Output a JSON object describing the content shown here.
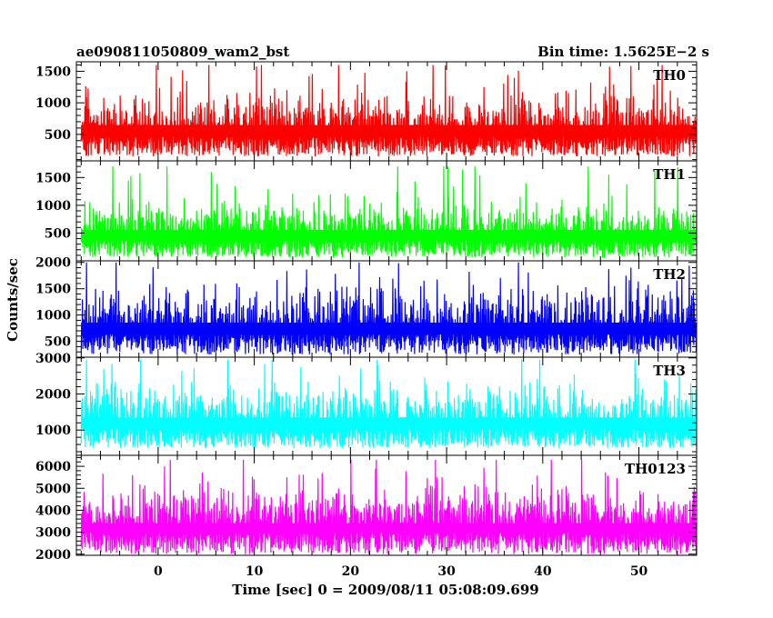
{
  "header": {
    "title": "ae090811050809_wam2_bst",
    "bin_time": "Bin time: 1.5625E−2 s"
  },
  "xlabel": "Time [sec] 0 = 2009/08/11 05:08:09.699",
  "ylabel": "Counts/sec",
  "chart_data": [
    {
      "type": "line",
      "series": [
        {
          "name": "TH0",
          "color": "#ff0000",
          "low": 150,
          "base": 720,
          "high": 1600,
          "noise": 260
        }
      ],
      "x": {
        "range": [
          -8.5,
          56
        ],
        "data_range": [
          -8,
          56
        ],
        "ticks": [
          0,
          10,
          20,
          30,
          40,
          50
        ],
        "tick_labels": [
          "0",
          "10",
          "20",
          "30",
          "40",
          "50"
        ]
      },
      "ylim": [
        80,
        1650
      ],
      "yticks": [
        500,
        1000,
        1500
      ],
      "ytick_labels": [
        "500",
        "1000",
        "1500"
      ],
      "yminor": 100
    },
    {
      "type": "line",
      "series": [
        {
          "name": "TH1",
          "color": "#00ff00",
          "low": 60,
          "base": 620,
          "high": 1700,
          "noise": 260
        }
      ],
      "x": {
        "range": [
          -8.5,
          56
        ],
        "data_range": [
          -8,
          56
        ],
        "ticks": [
          0,
          10,
          20,
          30,
          40,
          50
        ],
        "tick_labels": [
          "0",
          "10",
          "20",
          "30",
          "40",
          "50"
        ]
      },
      "ylim": [
        0,
        1800
      ],
      "yticks": [
        500,
        1000,
        1500
      ],
      "ytick_labels": [
        "500",
        "1000",
        "1500"
      ],
      "yminor": 100
    },
    {
      "type": "line",
      "series": [
        {
          "name": "TH2",
          "color": "#0000ff",
          "low": 250,
          "base": 950,
          "high": 2000,
          "noise": 330
        }
      ],
      "x": {
        "range": [
          -8.5,
          56
        ],
        "data_range": [
          -8,
          56
        ],
        "ticks": [
          0,
          10,
          20,
          30,
          40,
          50
        ],
        "tick_labels": [
          "0",
          "10",
          "20",
          "30",
          "40",
          "50"
        ]
      },
      "ylim": [
        200,
        2030
      ],
      "yticks": [
        500,
        1000,
        1500,
        2000
      ],
      "ytick_labels": [
        "500",
        "1000",
        "1500",
        "2000"
      ],
      "yminor": 100
    },
    {
      "type": "line",
      "series": [
        {
          "name": "TH3",
          "color": "#00ffff",
          "low": 500,
          "base": 1500,
          "high": 2950,
          "noise": 450
        }
      ],
      "x": {
        "range": [
          -8.5,
          56
        ],
        "data_range": [
          -8,
          56
        ],
        "ticks": [
          0,
          10,
          20,
          30,
          40,
          50
        ],
        "tick_labels": [
          "0",
          "10",
          "20",
          "30",
          "40",
          "50"
        ]
      },
      "ylim": [
        300,
        3020
      ],
      "yticks": [
        1000,
        2000,
        3000
      ],
      "ytick_labels": [
        "1000",
        "2000",
        "3000"
      ],
      "yminor": 200
    },
    {
      "type": "line",
      "series": [
        {
          "name": "TH0123",
          "color": "#ff00ff",
          "low": 2000,
          "base": 3800,
          "high": 6300,
          "noise": 650
        }
      ],
      "x": {
        "range": [
          -8.5,
          56
        ],
        "data_range": [
          -8,
          56
        ],
        "ticks": [
          0,
          10,
          20,
          30,
          40,
          50
        ],
        "tick_labels": [
          "0",
          "10",
          "20",
          "30",
          "40",
          "50"
        ]
      },
      "ylim": [
        1950,
        6500
      ],
      "yticks": [
        2000,
        3000,
        4000,
        5000,
        6000
      ],
      "ytick_labels": [
        "2000",
        "3000",
        "4000",
        "5000",
        "6000"
      ],
      "yminor": 200
    }
  ]
}
